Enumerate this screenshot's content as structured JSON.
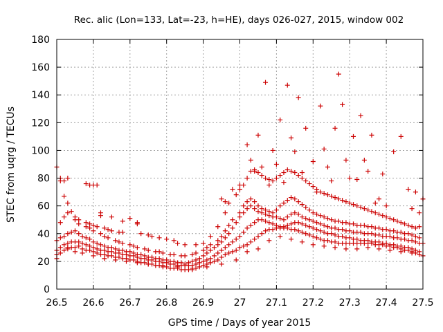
{
  "chart_data": {
    "type": "scatter",
    "title": "Rec. alic (Lon=133, Lat=-23, h=HE), days 026-027, 2015, window 002",
    "xlabel": "GPS time / Days of year 2015",
    "ylabel": "STEC from uqrg / TECUs",
    "xlim": [
      26.5,
      27.5
    ],
    "ylim": [
      0,
      180
    ],
    "xticks": [
      26.5,
      26.6,
      26.7,
      26.8,
      26.9,
      27.0,
      27.1,
      27.2,
      27.3,
      27.4,
      27.5
    ],
    "xtick_labels": [
      "26.5",
      "26.6",
      "26.7",
      "26.8",
      "26.9",
      "27",
      "27.1",
      "27.2",
      "27.3",
      "27.4",
      "27.5"
    ],
    "yticks": [
      0,
      20,
      40,
      60,
      80,
      100,
      120,
      140,
      160,
      180
    ],
    "ytick_labels": [
      "0",
      "20",
      "40",
      "60",
      "80",
      "100",
      "120",
      "140",
      "160",
      "180"
    ],
    "grid": true,
    "marker": "+",
    "color": "#cc0000",
    "series": [
      {
        "x": [
          26.5,
          26.5,
          26.51,
          26.52,
          26.53,
          26.54,
          26.55,
          26.56,
          26.57,
          26.58,
          26.59,
          26.6,
          26.61,
          26.62,
          26.63,
          26.64,
          26.65,
          26.66,
          26.67,
          26.68,
          26.69,
          26.7,
          26.71,
          26.72,
          26.73,
          26.74,
          26.75,
          26.76,
          26.77,
          26.78,
          26.79,
          26.8,
          26.81,
          26.82,
          26.83,
          26.84,
          26.85,
          26.86,
          26.87,
          26.88,
          26.89,
          26.9,
          26.91,
          26.92,
          26.93,
          26.94,
          26.95,
          26.96,
          26.97,
          26.98,
          26.99,
          27.0,
          27.01,
          27.02,
          27.03,
          27.04,
          27.05,
          27.06,
          27.07,
          27.08,
          27.09,
          27.1,
          27.11,
          27.12,
          27.13,
          27.14,
          27.15,
          27.16,
          27.17,
          27.18,
          27.19,
          27.2,
          27.21,
          27.22,
          27.23,
          27.24,
          27.25,
          27.26,
          27.27,
          27.28,
          27.29,
          27.3,
          27.31,
          27.32,
          27.33,
          27.34,
          27.35,
          27.36,
          27.37,
          27.38,
          27.39,
          27.4,
          27.41,
          27.42,
          27.43,
          27.44,
          27.45,
          27.46,
          27.47,
          27.48,
          27.49,
          27.5
        ],
        "y": [
          22,
          25,
          26,
          28,
          29,
          30,
          30,
          31,
          29,
          28,
          28,
          27,
          26,
          25,
          25,
          24,
          24,
          23,
          23,
          22,
          22,
          21,
          21,
          20,
          19,
          19,
          18,
          18,
          17,
          17,
          16,
          16,
          15,
          15,
          15,
          14,
          14,
          14,
          14,
          15,
          16,
          17,
          18,
          19,
          20,
          21,
          23,
          25,
          26,
          27,
          28,
          30,
          31,
          32,
          34,
          36,
          38,
          40,
          42,
          43,
          43,
          44,
          44,
          44,
          44,
          43,
          43,
          42,
          41,
          40,
          39,
          38,
          37,
          36,
          35,
          35,
          34,
          34,
          33,
          33,
          33,
          33,
          33,
          33,
          33,
          33,
          33,
          33,
          32,
          32,
          32,
          31,
          31,
          30,
          30,
          29,
          28,
          28,
          27,
          26,
          25,
          24
        ]
      },
      {
        "x": [
          26.5,
          26.51,
          26.52,
          26.53,
          26.54,
          26.55,
          26.56,
          26.57,
          26.58,
          26.59,
          26.6,
          26.61,
          26.62,
          26.63,
          26.64,
          26.65,
          26.66,
          26.67,
          26.68,
          26.69,
          26.7,
          26.71,
          26.72,
          26.73,
          26.74,
          26.75,
          26.76,
          26.77,
          26.78,
          26.79,
          26.8,
          26.81,
          26.82,
          26.83,
          26.84,
          26.85,
          26.86,
          26.87,
          26.88,
          26.89,
          26.9,
          26.91,
          26.92,
          26.93,
          26.94,
          26.95,
          26.96,
          26.97,
          26.98,
          26.99,
          27.0,
          27.01,
          27.02,
          27.03,
          27.04,
          27.05,
          27.06,
          27.07,
          27.08,
          27.09,
          27.1,
          27.11,
          27.12,
          27.13,
          27.14,
          27.15,
          27.16,
          27.17,
          27.18,
          27.19,
          27.2,
          27.21,
          27.22,
          27.23,
          27.24,
          27.25,
          27.26,
          27.27,
          27.28,
          27.29,
          27.3,
          27.31,
          27.32,
          27.33,
          27.34,
          27.35,
          27.36,
          27.37,
          27.38,
          27.39,
          27.4,
          27.41,
          27.42,
          27.43,
          27.44,
          27.45,
          27.46,
          27.47,
          27.48,
          27.49
        ],
        "y": [
          28,
          30,
          32,
          33,
          34,
          34,
          34,
          33,
          32,
          31,
          30,
          29,
          28,
          28,
          27,
          27,
          26,
          26,
          25,
          25,
          24,
          24,
          23,
          22,
          22,
          21,
          21,
          20,
          20,
          19,
          19,
          18,
          18,
          17,
          17,
          17,
          17,
          17,
          18,
          19,
          20,
          21,
          22,
          24,
          26,
          28,
          30,
          32,
          34,
          36,
          38,
          41,
          44,
          46,
          48,
          50,
          50,
          49,
          48,
          47,
          46,
          45,
          45,
          46,
          47,
          48,
          48,
          47,
          46,
          45,
          44,
          43,
          42,
          41,
          40,
          40,
          39,
          38,
          38,
          37,
          37,
          36,
          36,
          35,
          35,
          35,
          34,
          34,
          34,
          33,
          33,
          32,
          32,
          31,
          31,
          30,
          30,
          29,
          28,
          27
        ]
      },
      {
        "x": [
          26.5,
          26.51,
          26.52,
          26.53,
          26.54,
          26.55,
          26.56,
          26.57,
          26.58,
          26.59,
          26.6,
          26.61,
          26.62,
          26.63,
          26.64,
          26.65,
          26.66,
          26.67,
          26.68,
          26.69,
          26.7,
          26.71,
          26.72,
          26.73,
          26.74,
          26.75,
          26.76,
          26.77,
          26.78,
          26.79,
          26.8,
          26.81,
          26.82,
          26.83,
          26.84,
          26.85,
          26.86,
          26.87,
          26.88,
          26.89,
          26.9,
          26.91,
          26.92,
          26.93,
          26.94,
          26.95,
          26.96,
          26.97,
          26.98,
          26.99,
          27.0,
          27.01,
          27.02,
          27.03,
          27.04,
          27.05,
          27.06,
          27.07,
          27.08,
          27.09,
          27.1,
          27.11,
          27.12,
          27.13,
          27.14,
          27.15,
          27.16,
          27.17,
          27.18,
          27.19,
          27.2,
          27.21,
          27.22,
          27.23,
          27.24,
          27.25,
          27.26,
          27.27,
          27.28,
          27.29,
          27.3,
          27.31,
          27.32,
          27.33,
          27.34,
          27.35,
          27.36,
          27.37,
          27.38,
          27.39,
          27.4,
          27.41,
          27.42,
          27.43,
          27.44,
          27.45,
          27.46,
          27.47,
          27.48,
          27.49,
          27.5
        ],
        "y": [
          35,
          37,
          38,
          40,
          41,
          42,
          40,
          38,
          37,
          36,
          34,
          33,
          32,
          31,
          30,
          30,
          29,
          28,
          28,
          27,
          27,
          26,
          25,
          25,
          24,
          23,
          23,
          22,
          22,
          21,
          21,
          20,
          20,
          19,
          19,
          18,
          19,
          20,
          21,
          22,
          24,
          26,
          28,
          30,
          32,
          34,
          37,
          40,
          44,
          48,
          52,
          55,
          58,
          60,
          58,
          56,
          55,
          54,
          53,
          52,
          52,
          51,
          50,
          52,
          54,
          55,
          54,
          52,
          51,
          50,
          49,
          48,
          47,
          46,
          45,
          44,
          44,
          43,
          43,
          42,
          42,
          41,
          41,
          41,
          40,
          40,
          40,
          39,
          39,
          38,
          38,
          38,
          37,
          37,
          36,
          36,
          35,
          35,
          34,
          33,
          33
        ]
      },
      {
        "x": [
          26.51,
          26.52,
          26.53,
          26.55,
          26.56,
          26.58,
          26.59,
          26.6,
          26.62,
          26.63,
          26.64,
          26.66,
          26.67,
          26.68,
          26.7,
          26.71,
          26.72,
          26.74,
          26.75,
          26.77,
          26.78,
          26.79,
          26.81,
          26.82,
          26.84,
          26.85,
          26.87,
          26.88,
          26.9,
          26.91,
          26.92,
          26.94,
          26.95,
          26.96,
          26.97,
          26.98,
          27.0,
          27.01,
          27.02,
          27.03,
          27.04,
          27.05,
          27.06,
          27.07,
          27.08,
          27.09,
          27.1,
          27.11,
          27.12,
          27.13,
          27.14,
          27.15,
          27.16,
          27.17,
          27.18,
          27.19,
          27.2,
          27.21,
          27.22,
          27.23,
          27.24,
          27.25,
          27.26,
          27.27,
          27.28,
          27.29,
          27.3,
          27.31,
          27.32,
          27.33,
          27.34,
          27.35,
          27.36,
          27.37,
          27.38,
          27.39,
          27.4,
          27.41,
          27.42,
          27.43,
          27.44,
          27.45,
          27.46,
          27.47,
          27.48,
          27.49
        ],
        "y": [
          48,
          52,
          55,
          50,
          47,
          45,
          44,
          42,
          40,
          38,
          37,
          35,
          34,
          33,
          32,
          31,
          30,
          29,
          28,
          27,
          27,
          26,
          25,
          25,
          24,
          24,
          25,
          26,
          28,
          30,
          32,
          35,
          38,
          42,
          46,
          50,
          55,
          60,
          63,
          65,
          63,
          60,
          58,
          57,
          56,
          55,
          57,
          60,
          62,
          64,
          66,
          65,
          63,
          61,
          59,
          57,
          55,
          54,
          53,
          52,
          51,
          50,
          49,
          49,
          48,
          48,
          47,
          47,
          46,
          46,
          46,
          45,
          45,
          44,
          44,
          43,
          43,
          42,
          42,
          41,
          41,
          40,
          40,
          39,
          38,
          37
        ]
      },
      {
        "x": [
          26.5,
          26.51,
          26.52,
          26.53,
          26.54,
          26.55,
          26.56,
          26.58,
          26.59,
          26.6,
          26.61,
          26.62,
          26.63,
          26.64,
          26.65,
          26.67,
          26.68,
          26.7,
          26.72,
          26.73,
          26.75,
          26.76,
          26.78,
          26.8,
          26.82,
          26.83,
          26.85,
          26.88,
          26.9,
          26.92,
          26.94,
          26.96,
          26.97,
          26.99,
          27.0,
          27.01,
          27.02,
          27.03,
          27.04,
          27.05,
          27.06,
          27.07,
          27.08,
          27.09,
          27.1,
          27.11,
          27.12,
          27.13,
          27.14,
          27.15,
          27.16,
          27.17,
          27.18,
          27.19,
          27.2,
          27.21,
          27.22,
          27.23,
          27.24,
          27.25,
          27.26,
          27.27,
          27.28,
          27.29,
          27.3,
          27.31,
          27.32,
          27.33,
          27.34,
          27.35,
          27.36,
          27.37,
          27.38,
          27.39,
          27.4,
          27.41,
          27.42,
          27.43,
          27.44,
          27.45,
          27.46,
          27.47,
          27.48,
          27.49,
          27.5
        ],
        "y": [
          88,
          78,
          67,
          62,
          56,
          52,
          50,
          48,
          47,
          46,
          45,
          53,
          44,
          43,
          42,
          41,
          41,
          51,
          48,
          40,
          39,
          38,
          37,
          36,
          35,
          33,
          32,
          32,
          33,
          38,
          45,
          55,
          62,
          68,
          72,
          75,
          80,
          85,
          86,
          84,
          82,
          80,
          79,
          78,
          80,
          82,
          84,
          86,
          85,
          84,
          82,
          80,
          78,
          76,
          74,
          72,
          70,
          69,
          68,
          67,
          66,
          65,
          64,
          63,
          62,
          61,
          60,
          59,
          58,
          57,
          56,
          55,
          54,
          53,
          52,
          51,
          50,
          49,
          48,
          47,
          46,
          45,
          44,
          45,
          65
        ]
      },
      {
        "x": [
          26.51,
          26.52,
          26.53,
          26.58,
          26.59,
          26.6,
          26.61,
          26.62,
          26.65,
          26.68,
          26.72,
          26.95,
          26.96,
          26.98,
          27.0,
          27.02,
          27.03,
          27.04,
          27.05,
          27.06,
          27.07,
          27.08,
          27.09,
          27.1,
          27.11,
          27.12,
          27.13,
          27.14,
          27.15,
          27.16,
          27.17,
          27.18,
          27.2,
          27.21,
          27.22,
          27.23,
          27.24,
          27.25,
          27.26,
          27.27,
          27.28,
          27.29,
          27.3,
          27.31,
          27.32,
          27.33,
          27.34,
          27.35,
          27.36,
          27.37,
          27.38,
          27.39,
          27.4,
          27.42,
          27.44,
          27.46,
          27.47,
          27.48,
          27.49,
          27.5
        ],
        "y": [
          80,
          78,
          80,
          76,
          75,
          75,
          75,
          55,
          52,
          49,
          47,
          65,
          63,
          72,
          75,
          104,
          93,
          85,
          111,
          88,
          149,
          75,
          100,
          90,
          122,
          77,
          147,
          109,
          99,
          138,
          84,
          116,
          92,
          70,
          132,
          101,
          88,
          78,
          116,
          155,
          133,
          93,
          80,
          110,
          79,
          125,
          93,
          85,
          111,
          62,
          65,
          83,
          60,
          99,
          110,
          72,
          58,
          70,
          55,
          65
        ]
      },
      {
        "x": [
          26.53,
          26.55,
          26.57,
          26.6,
          26.63,
          26.66,
          26.69,
          26.72,
          26.75,
          26.79,
          26.83,
          26.87,
          26.91,
          26.95,
          26.99,
          27.02,
          27.05,
          27.08,
          27.11,
          27.14,
          27.17,
          27.2,
          27.23,
          27.26,
          27.29,
          27.32,
          27.35,
          27.38,
          27.41,
          27.44,
          27.47
        ],
        "y": [
          30,
          27,
          26,
          24,
          22,
          21,
          20,
          19,
          18,
          17,
          16,
          15,
          16,
          18,
          21,
          27,
          29,
          35,
          38,
          36,
          34,
          32,
          31,
          30,
          29,
          29,
          30,
          29,
          28,
          27,
          26
        ]
      }
    ]
  }
}
